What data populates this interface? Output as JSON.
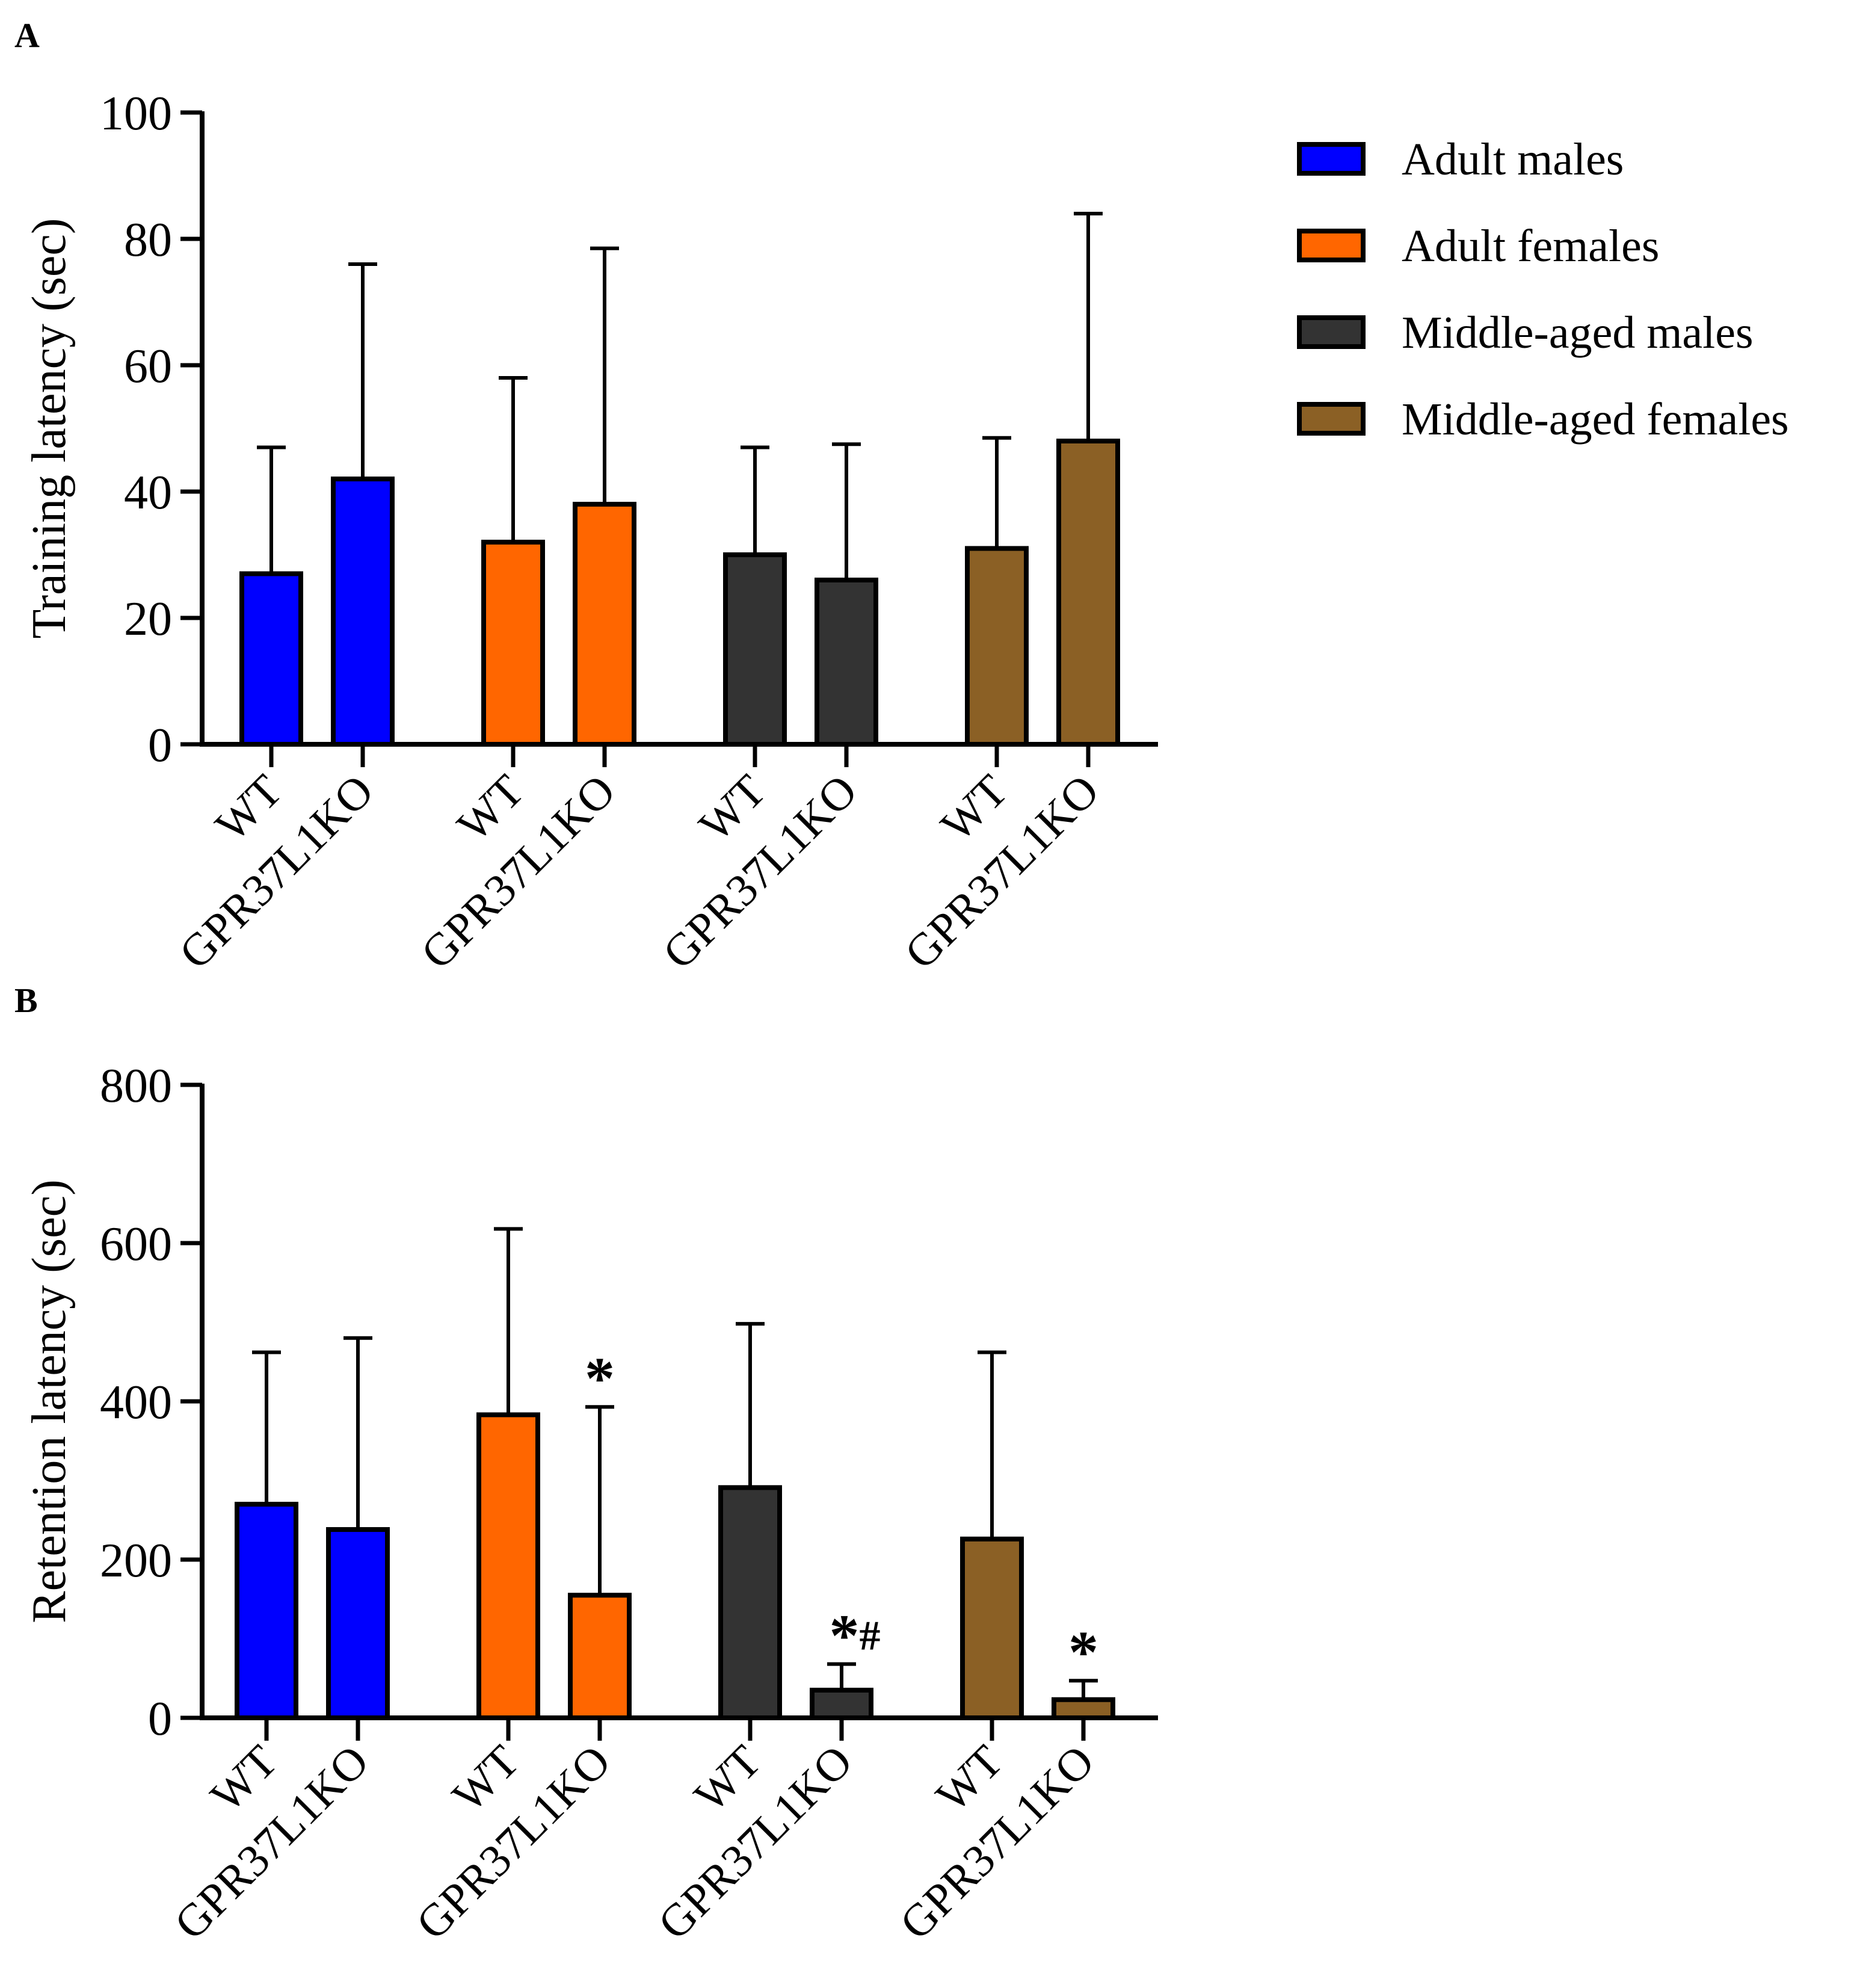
{
  "panel_letters": {
    "a": "A",
    "b": "B"
  },
  "legend": {
    "entries": [
      {
        "label": "Adult males",
        "color": "#0000FF"
      },
      {
        "label": "Adult females",
        "color": "#FF6600"
      },
      {
        "label": "Middle-aged males",
        "color": "#333333"
      },
      {
        "label": "Middle-aged females",
        "color": "#8B6025"
      }
    ]
  },
  "chart_data": [
    {
      "type": "bar",
      "panel": "A",
      "ylabel": "Training latency (sec)",
      "ylim": [
        0,
        100
      ],
      "yticks": [
        0,
        20,
        40,
        60,
        80,
        100
      ],
      "categories": [
        "WT",
        "GPR37L1KO",
        "WT",
        "GPR37L1KO",
        "WT",
        "GPR37L1KO",
        "WT",
        "GPR37L1KO"
      ],
      "groups": [
        "Adult males",
        "Adult females",
        "Middle-aged males",
        "Middle-aged females"
      ],
      "values": [
        27,
        42,
        32,
        38,
        30,
        26,
        31,
        48
      ],
      "error_upper": [
        47,
        76,
        58,
        78.5,
        47,
        47.5,
        48.5,
        84
      ],
      "annotations": [
        "",
        "",
        "",
        "",
        "",
        "",
        "",
        ""
      ]
    },
    {
      "type": "bar",
      "panel": "B",
      "ylabel": "Retention latency (sec)",
      "ylim": [
        0,
        800
      ],
      "yticks": [
        0,
        200,
        400,
        600,
        800
      ],
      "categories": [
        "WT",
        "GPR37L1KO",
        "WT",
        "GPR37L1KO",
        "WT",
        "GPR37L1KO",
        "WT",
        "GPR37L1KO"
      ],
      "groups": [
        "Adult males",
        "Adult females",
        "Middle-aged males",
        "Middle-aged females"
      ],
      "values": [
        270,
        238,
        383,
        155,
        291,
        35,
        226,
        23
      ],
      "error_upper": [
        462,
        480,
        618,
        393,
        498,
        68,
        462,
        47
      ],
      "annotations": [
        "",
        "",
        "",
        "*",
        "",
        "*#",
        "",
        "*"
      ]
    }
  ]
}
